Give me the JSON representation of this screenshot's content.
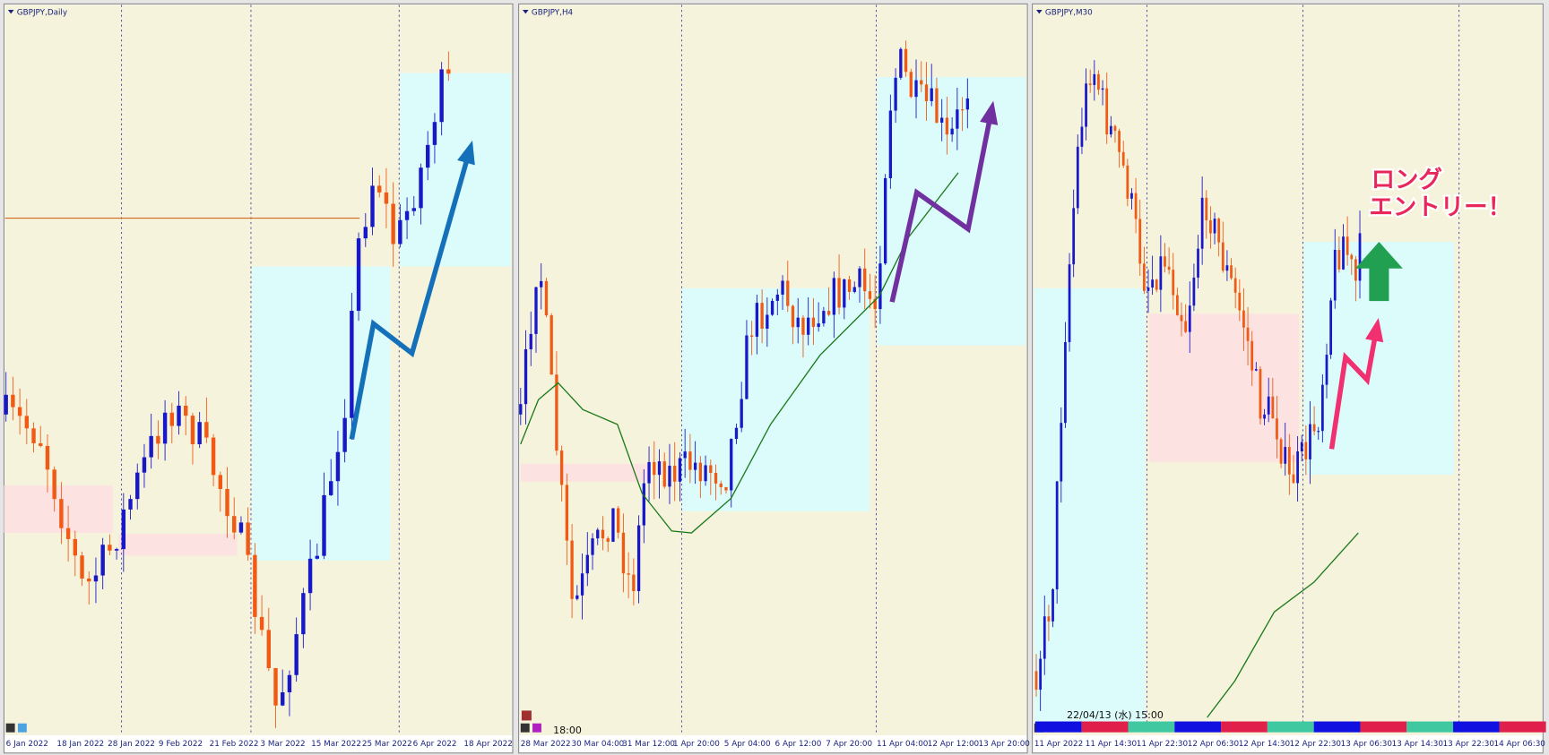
{
  "panels": [
    {
      "title": "GBPJPY,Daily",
      "x_labels": [
        "6 Jan 2022",
        "18 Jan 2022",
        "28 Jan 2022",
        "9 Feb 2022",
        "21 Feb 2022",
        "3 Mar 2022",
        "15 Mar 2022",
        "25 Mar 2022",
        "6 Apr 2022",
        "18 Apr 2022"
      ]
    },
    {
      "title": "GBPJPY,H4",
      "x_labels": [
        "28 Mar 2022",
        "30 Mar 04:00",
        "31 Mar 12:00",
        "1 Apr 20:00",
        "5 Apr 04:00",
        "6 Apr 12:00",
        "7 Apr 20:00",
        "11 Apr 04:00",
        "12 Apr 12:00",
        "13 Apr 20:00"
      ],
      "time_label": "18:00"
    },
    {
      "title": "GBPJPY,M30",
      "x_labels": [
        "11 Apr 2022",
        "11 Apr 14:30",
        "11 Apr 22:30",
        "12 Apr 06:30",
        "12 Apr 14:30",
        "12 Apr 22:30",
        "13 Apr 06:30",
        "13 Apr 14:30",
        "13 Apr 22:30",
        "14 Apr 06:30"
      ],
      "time_label": "22/04/13 (水) 15:00"
    }
  ],
  "annotation": {
    "lines": [
      "ロング",
      "エントリー！"
    ]
  }
}
